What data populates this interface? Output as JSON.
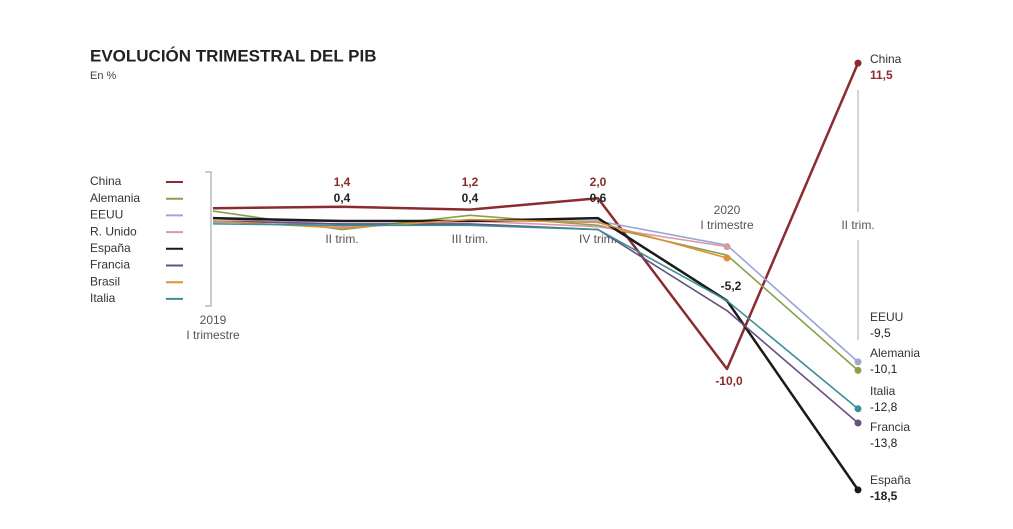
{
  "chart_data": {
    "type": "line",
    "title": "EVOLUCIÓN TRIMESTRAL DEL PIB",
    "subtitle": "En %",
    "categories": [
      "I trimestre",
      "II trim.",
      "III trim.",
      "IV trim.",
      "I trimestre",
      "II trim."
    ],
    "years": [
      "2019",
      null,
      null,
      null,
      "2020",
      null
    ],
    "ylim": [
      -19,
      12
    ],
    "series": [
      {
        "name": "China",
        "color": "#8b2b2f",
        "values": [
          1.3,
          1.4,
          1.2,
          2.0,
          -10.0,
          11.5
        ],
        "value_labels": [
          null,
          "1,4",
          "1,2",
          "2,0",
          "-10,0",
          "11,5"
        ]
      },
      {
        "name": "Alemania",
        "color": "#8aa04a",
        "values": [
          1.1,
          -0.2,
          0.8,
          0.1,
          -2.0,
          -10.1
        ],
        "value_labels": [
          null,
          null,
          null,
          null,
          null,
          "-10,1"
        ]
      },
      {
        "name": "EEUU",
        "color": "#9aa6d6",
        "values": [
          0.3,
          0.4,
          0.4,
          0.4,
          -1.3,
          -9.5
        ],
        "value_labels": [
          null,
          null,
          null,
          null,
          null,
          "-9,5"
        ]
      },
      {
        "name": "R. Unido",
        "color": "#d99aa8",
        "values": [
          0.6,
          0.0,
          0.4,
          0.0,
          -1.4,
          null
        ]
      },
      {
        "name": "España",
        "color": "#1a1a1a",
        "values": [
          0.6,
          0.4,
          0.4,
          0.6,
          -5.2,
          -18.5
        ],
        "value_labels": [
          null,
          "0,4",
          "0,4",
          "0,6",
          "-5,2",
          "-18,5"
        ]
      },
      {
        "name": "Francia",
        "color": "#6a4f82",
        "values": [
          0.4,
          0.2,
          0.2,
          -0.2,
          -5.9,
          -13.8
        ],
        "value_labels": [
          null,
          null,
          null,
          null,
          null,
          "-13,8"
        ]
      },
      {
        "name": "Brasil",
        "color": "#e0903a",
        "values": [
          0.4,
          -0.1,
          0.5,
          0.3,
          -2.2,
          null
        ]
      },
      {
        "name": "Italia",
        "color": "#3a8f98",
        "values": [
          0.2,
          0.1,
          0.1,
          -0.2,
          -5.2,
          -12.8
        ],
        "value_labels": [
          null,
          null,
          null,
          null,
          null,
          "-12,8"
        ]
      }
    ]
  }
}
